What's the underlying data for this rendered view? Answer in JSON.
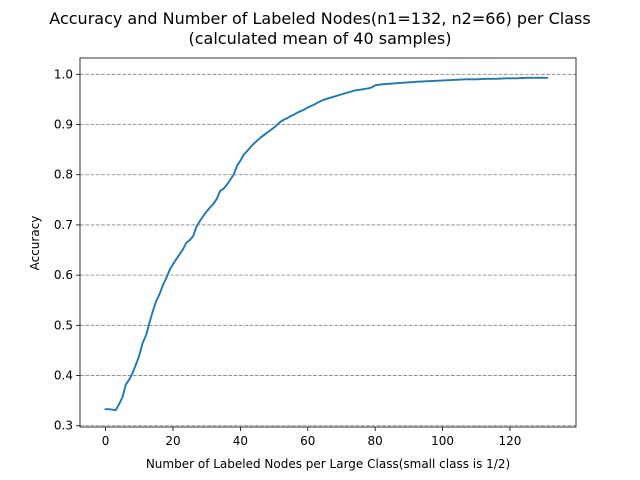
{
  "chart_data": {
    "type": "line",
    "title": "Accuracy and Number of Labeled Nodes(n1=132, n2=66) per Class",
    "subtitle": "(calculated mean of 40 samples)",
    "xlabel": "Number of Labeled Nodes per Large Class(small class is 1/2)",
    "ylabel": "Accuracy",
    "xlim": [
      -7.6,
      139.6
    ],
    "ylim": [
      0.2975,
      1.0325
    ],
    "x_ticks": [
      0,
      20,
      40,
      60,
      80,
      100,
      120
    ],
    "x_tick_labels": [
      "0",
      "20",
      "40",
      "60",
      "80",
      "100",
      "120"
    ],
    "y_ticks": [
      0.3,
      0.4,
      0.5,
      0.6,
      0.7,
      0.8,
      0.9,
      1.0
    ],
    "y_tick_labels": [
      "0.3",
      "0.4",
      "0.5",
      "0.6",
      "0.7",
      "0.8",
      "0.9",
      "1.0"
    ],
    "grid": "horizontal dashed",
    "color": "#1f77b4",
    "series": [
      {
        "x": [
          0,
          1,
          2,
          3,
          4,
          5,
          6,
          7,
          8,
          9,
          10,
          11,
          12,
          13,
          14,
          15,
          16,
          17,
          18,
          19,
          20,
          21,
          22,
          23,
          24,
          25,
          26,
          27,
          28,
          29,
          30,
          31,
          32,
          33,
          34,
          35,
          36,
          37,
          38,
          39,
          40,
          41,
          42,
          43,
          44,
          45,
          46,
          47,
          48,
          49,
          50,
          51,
          52,
          53,
          54,
          55,
          56,
          57,
          58,
          59,
          60,
          61,
          62,
          63,
          64,
          65,
          66,
          67,
          68,
          69,
          70,
          71,
          72,
          73,
          74,
          75,
          76,
          77,
          78,
          79,
          80,
          81,
          82,
          84,
          86,
          88,
          90,
          92,
          95,
          98,
          101,
          104,
          107,
          110,
          113,
          116,
          119,
          122,
          125,
          128,
          131
        ],
        "values": [
          0.333,
          0.333,
          0.332,
          0.331,
          0.343,
          0.357,
          0.382,
          0.392,
          0.405,
          0.422,
          0.44,
          0.465,
          0.48,
          0.505,
          0.528,
          0.548,
          0.562,
          0.58,
          0.594,
          0.61,
          0.622,
          0.632,
          0.642,
          0.652,
          0.665,
          0.67,
          0.678,
          0.697,
          0.708,
          0.718,
          0.727,
          0.735,
          0.742,
          0.752,
          0.768,
          0.772,
          0.78,
          0.79,
          0.8,
          0.818,
          0.828,
          0.84,
          0.847,
          0.855,
          0.862,
          0.868,
          0.874,
          0.879,
          0.884,
          0.889,
          0.894,
          0.9,
          0.906,
          0.91,
          0.913,
          0.917,
          0.92,
          0.924,
          0.927,
          0.93,
          0.934,
          0.937,
          0.94,
          0.944,
          0.947,
          0.95,
          0.952,
          0.954,
          0.956,
          0.958,
          0.96,
          0.962,
          0.964,
          0.966,
          0.968,
          0.969,
          0.97,
          0.971,
          0.972,
          0.974,
          0.978,
          0.979,
          0.98,
          0.981,
          0.982,
          0.983,
          0.984,
          0.985,
          0.986,
          0.987,
          0.988,
          0.989,
          0.99,
          0.99,
          0.991,
          0.991,
          0.992,
          0.992,
          0.993,
          0.993,
          0.993
        ]
      }
    ]
  }
}
